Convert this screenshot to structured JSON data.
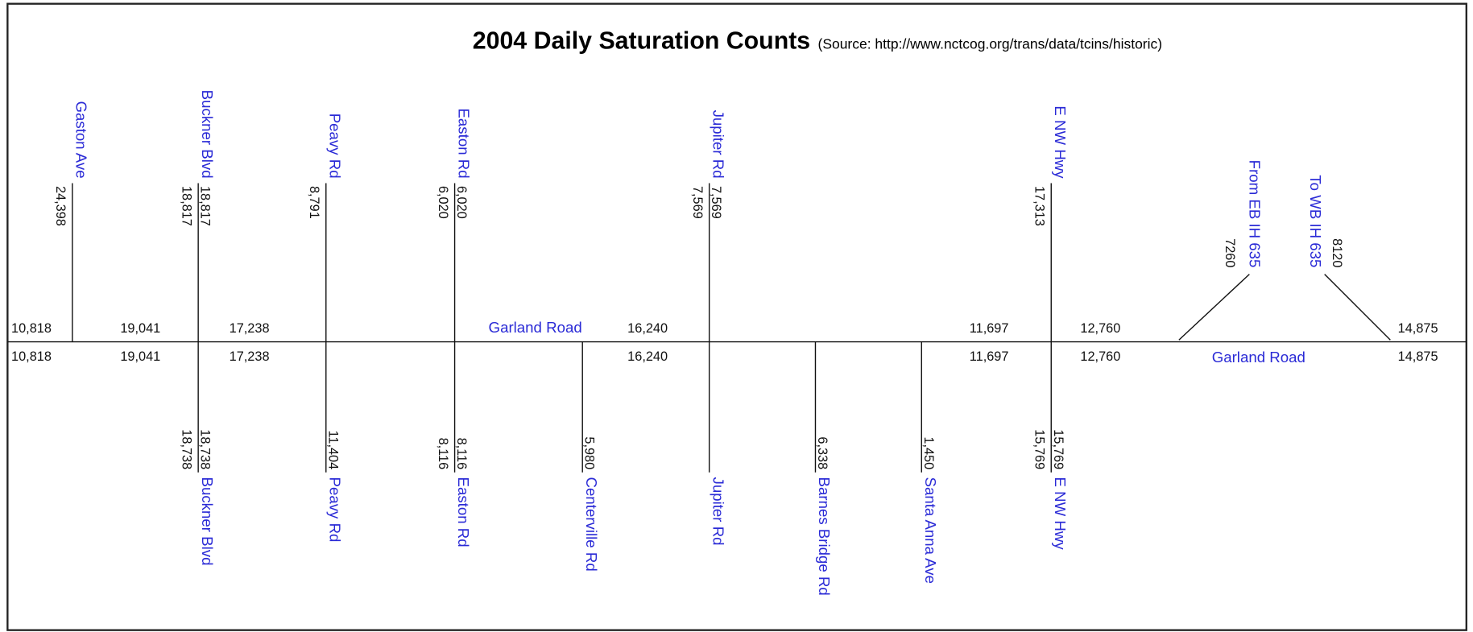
{
  "title": "2004 Daily Saturation Counts",
  "source": "(Source: http://www.nctcog.org/trans/data/tcins/historic)",
  "main_road": {
    "north_label": "Garland Road",
    "south_label": "Garland Road",
    "north_counts": [
      "10,818",
      "19,041",
      "17,238",
      "16,240",
      "11,697",
      "12,760",
      "14,875"
    ],
    "south_counts": [
      "10,818",
      "19,041",
      "17,238",
      "16,240",
      "11,697",
      "12,760",
      "14,875"
    ]
  },
  "north_streets": [
    {
      "label": "Gaston Ave",
      "counts": [
        "24,398"
      ]
    },
    {
      "label": "Buckner Blvd",
      "counts": [
        "18,817",
        "18,817"
      ]
    },
    {
      "label": "Peavy Rd",
      "counts": [
        "8,791"
      ]
    },
    {
      "label": "Easton Rd",
      "counts": [
        "6,020",
        "6,020"
      ]
    },
    {
      "label": "Jupiter Rd",
      "counts": [
        "7,569",
        "7,569"
      ]
    },
    {
      "label": "E NW Hwy",
      "counts": [
        "17,313"
      ]
    },
    {
      "label": "From EB IH 635",
      "counts": [
        "7260"
      ]
    },
    {
      "label": "To WB IH 635",
      "counts": [
        "8120"
      ]
    }
  ],
  "south_streets": [
    {
      "label": "Buckner Blvd",
      "counts": [
        "18,738",
        "18,738"
      ]
    },
    {
      "label": "Peavy Rd",
      "counts": [
        "11,404"
      ]
    },
    {
      "label": "Easton Rd",
      "counts": [
        "8,116",
        "8,116"
      ]
    },
    {
      "label": "Centerville Rd",
      "counts": [
        "5,980"
      ]
    },
    {
      "label": "Jupiter Rd",
      "counts": []
    },
    {
      "label": "Barnes Bridge Rd",
      "counts": [
        "6,338"
      ]
    },
    {
      "label": "Santa Anna Ave",
      "counts": [
        "1,450"
      ]
    },
    {
      "label": "E NW Hwy",
      "counts": [
        "15,769",
        "15,769"
      ]
    }
  ]
}
